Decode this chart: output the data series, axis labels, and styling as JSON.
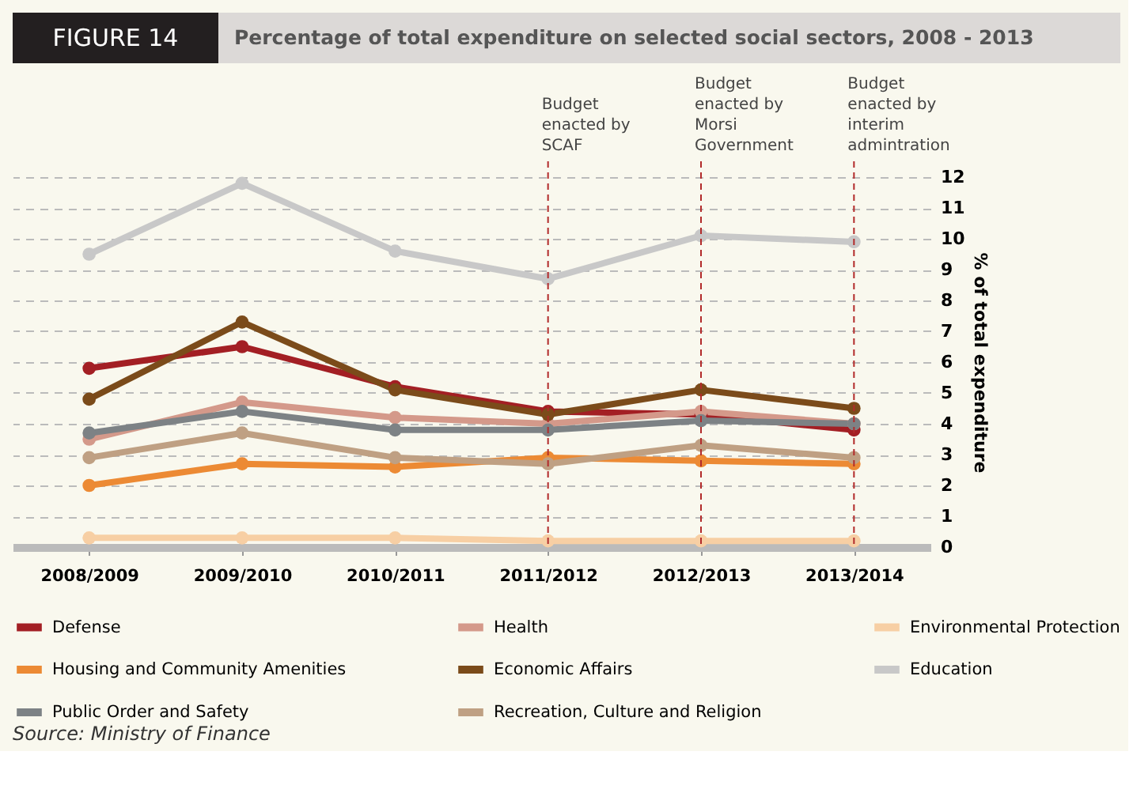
{
  "chart_data": {
    "type": "line",
    "title": "FIGURE 14",
    "subtitle": "Percentage of total expenditure on selected social sectors, 2008 - 2013",
    "ylabel": "% of total expenditure",
    "categories": [
      "2008/2009",
      "2009/2010",
      "2010/2011",
      "2011/2012",
      "2012/2013",
      "2013/2014"
    ],
    "series": [
      {
        "name": "Defense",
        "color": "#a31f24",
        "values": [
          5.8,
          6.5,
          5.2,
          4.4,
          4.3,
          3.8
        ]
      },
      {
        "name": "Health",
        "color": "#d4998a",
        "values": [
          3.5,
          4.7,
          4.2,
          4.0,
          4.4,
          4.0
        ]
      },
      {
        "name": "Environmental Protection",
        "color": "#f7cfa4",
        "values": [
          0.3,
          0.3,
          0.3,
          0.2,
          0.2,
          0.2
        ]
      },
      {
        "name": "Housing and Community Amenities",
        "color": "#ec8a34",
        "values": [
          2.0,
          2.7,
          2.6,
          2.9,
          2.8,
          2.7
        ]
      },
      {
        "name": "Economic Affairs",
        "color": "#7b4b1a",
        "values": [
          4.8,
          7.3,
          5.1,
          4.3,
          5.1,
          4.5
        ]
      },
      {
        "name": "Education",
        "color": "#c8c8c8",
        "values": [
          9.5,
          11.8,
          9.6,
          8.7,
          10.1,
          9.9
        ]
      },
      {
        "name": "Public Order and Safety",
        "color": "#7d8285",
        "values": [
          3.7,
          4.4,
          3.8,
          3.8,
          4.1,
          4.0
        ]
      },
      {
        "name": "Recreation, Culture and Religion",
        "color": "#bfa083",
        "values": [
          2.9,
          3.7,
          2.9,
          2.7,
          3.3,
          2.9
        ]
      }
    ],
    "ylim": [
      0,
      12
    ],
    "yticks": [
      0,
      1,
      2,
      3,
      4,
      5,
      6,
      7,
      8,
      9,
      10,
      11,
      12
    ],
    "grid": "y",
    "marker": "circle",
    "line_style": "solid",
    "legend": "bottom",
    "ref_lines": [
      {
        "axis": "x",
        "value": "2011/2012",
        "label": "Budget\nenacted by\nSCAF",
        "color": "#b22a2a",
        "line_style": "dashed"
      },
      {
        "axis": "x",
        "value": "2012/2013",
        "label": "Budget\nenacted by\nMorsi\nGovernment",
        "color": "#b22a2a",
        "line_style": "dashed"
      },
      {
        "axis": "x",
        "value": "2013/2014",
        "label": "Budget\nenacted by\ninterim\nadmintration",
        "color": "#b22a2a",
        "line_style": "dashed"
      }
    ],
    "annotations": [
      "Source: Ministry of Finance"
    ]
  }
}
